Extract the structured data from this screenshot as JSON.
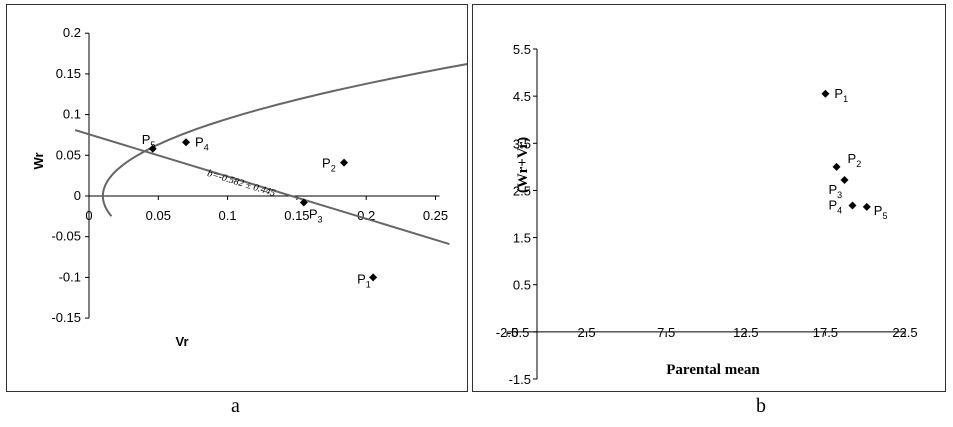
{
  "captions": {
    "a": "a",
    "b": "b"
  },
  "chart_data": [
    {
      "type": "scatter",
      "panel": "a",
      "xlabel": "Vr",
      "ylabel": "Wr",
      "xlim": [
        0,
        0.25
      ],
      "ylim": [
        -0.15,
        0.2
      ],
      "x_ticks": [
        {
          "value": 0,
          "label": "0"
        },
        {
          "value": 0.05,
          "label": "0.05"
        },
        {
          "value": 0.1,
          "label": "0.1"
        },
        {
          "value": 0.15,
          "label": "0.15"
        },
        {
          "value": 0.2,
          "label": "0.2"
        },
        {
          "value": 0.25,
          "label": "0.25"
        }
      ],
      "y_ticks": [
        {
          "value": 0.2,
          "label": "0.2"
        },
        {
          "value": 0.15,
          "label": "0.15"
        },
        {
          "value": 0.1,
          "label": "0.1"
        },
        {
          "value": 0.05,
          "label": "0.05"
        },
        {
          "value": 0,
          "label": "0"
        },
        {
          "value": -0.05,
          "label": "-0.05"
        },
        {
          "value": -0.1,
          "label": "-0.1"
        },
        {
          "value": -0.15,
          "label": "-0.15"
        }
      ],
      "points": [
        {
          "label": "P",
          "sub": "1",
          "x": 0.205,
          "y": -0.1
        },
        {
          "label": "P",
          "sub": "2",
          "x": 0.184,
          "y": 0.041
        },
        {
          "label": "P",
          "sub": "3",
          "x": 0.155,
          "y": -0.008
        },
        {
          "label": "P",
          "sub": "4",
          "x": 0.07,
          "y": 0.066
        },
        {
          "label": "P",
          "sub": "5",
          "x": 0.046,
          "y": 0.058
        }
      ],
      "regression_line": {
        "x": [
          -0.01,
          0.26
        ],
        "y": [
          0.081,
          -0.059
        ]
      },
      "limiting_parabola": {
        "equation": "Wr^2 = Vp * Vr",
        "vp": 0.1,
        "y_range": [
          -0.025,
          0.163
        ]
      },
      "annotation": "b=-0.582 ± 0.445",
      "grid": false
    },
    {
      "type": "scatter",
      "panel": "b",
      "xlabel": "Parental mean",
      "ylabel": "(Wr+Vr)",
      "xlim": [
        -2.5,
        22.5
      ],
      "ylim": [
        -1.5,
        5.5
      ],
      "x_ticks": [
        {
          "value": -2.5,
          "label": "-2.5"
        },
        {
          "value": 2.5,
          "label": "2.5"
        },
        {
          "value": 7.5,
          "label": "7.5"
        },
        {
          "value": 12.5,
          "label": "12.5"
        },
        {
          "value": 17.5,
          "label": "17.5"
        },
        {
          "value": 22.5,
          "label": "22.5"
        }
      ],
      "y_ticks": [
        {
          "value": 5.5,
          "label": "5.5"
        },
        {
          "value": 4.5,
          "label": "4.5"
        },
        {
          "value": 3.5,
          "label": "3.5"
        },
        {
          "value": 2.5,
          "label": "2.5"
        },
        {
          "value": 1.5,
          "label": "1.5"
        },
        {
          "value": 0.5,
          "label": "0.5"
        },
        {
          "value": -0.5,
          "label": "-0.5"
        },
        {
          "value": -1.5,
          "label": "-1.5"
        }
      ],
      "points": [
        {
          "label": "P",
          "sub": "1",
          "x": 17.5,
          "y": 4.55
        },
        {
          "label": "P",
          "sub": "2",
          "x": 18.2,
          "y": 3.0
        },
        {
          "label": "P",
          "sub": "3",
          "x": 18.7,
          "y": 2.72
        },
        {
          "label": "P",
          "sub": "4",
          "x": 19.2,
          "y": 2.18
        },
        {
          "label": "P",
          "sub": "5",
          "x": 20.1,
          "y": 2.15
        }
      ],
      "grid": false
    }
  ]
}
